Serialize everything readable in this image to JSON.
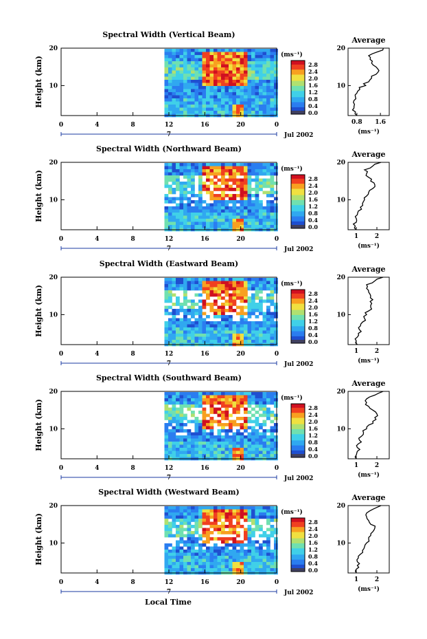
{
  "figure": {
    "x_axis_label": "Local Time",
    "date_label": "Jul 2002",
    "day_label": "7",
    "y_axis_label": "Height (km)",
    "colorbar_unit": "(ms⁻¹)",
    "colorbar_ticks": [
      "2.8",
      "2.4",
      "2.0",
      "1.6",
      "1.2",
      "0.8",
      "0.4",
      "0.0"
    ],
    "avg_title": "Average",
    "avg_unit": "(ms⁻¹)",
    "colors": {
      "palette": [
        "#2a3a8c",
        "#1f4fd0",
        "#2a7df0",
        "#30a8f0",
        "#40d0e8",
        "#70e0b0",
        "#b0e070",
        "#f0e040",
        "#f8a020",
        "#f04020",
        "#d01020"
      ],
      "axis": "#000000",
      "date_bar": "#1a3aa0",
      "bottom_swatch": "#404060"
    }
  },
  "chart_data": [
    {
      "type": "heatmap",
      "title": "Spectral Width (Vertical Beam)",
      "xlabel": "",
      "ylabel": "Height (km)",
      "x_ticks": [
        "0",
        "4",
        "8",
        "12",
        "16",
        "20",
        "0"
      ],
      "y_ticks": [
        "20",
        "10"
      ],
      "xlim": [
        0,
        24
      ],
      "ylim": [
        2,
        20
      ],
      "data_start_hour": 11.5,
      "value_range": [
        0.0,
        3.0
      ],
      "average_profile": {
        "x_ticks": [
          "0.8",
          "1.6"
        ],
        "xlim": [
          0.5,
          1.9
        ],
        "y_ticks": [
          "20",
          "10"
        ],
        "heights_km": [
          2,
          3,
          4,
          5,
          6,
          7,
          8,
          9,
          10,
          11,
          12,
          13,
          14,
          15,
          16,
          17,
          18,
          19,
          20
        ],
        "values": [
          0.8,
          0.75,
          0.7,
          0.72,
          0.7,
          0.75,
          0.8,
          0.9,
          1.1,
          1.2,
          1.3,
          1.45,
          1.55,
          1.45,
          1.3,
          1.25,
          1.2,
          1.5,
          1.7
        ]
      }
    },
    {
      "type": "heatmap",
      "title": "Spectral Width (Northward Beam)",
      "xlabel": "",
      "ylabel": "Height (km)",
      "x_ticks": [
        "0",
        "4",
        "8",
        "12",
        "16",
        "20",
        "0"
      ],
      "y_ticks": [
        "20",
        "10"
      ],
      "xlim": [
        0,
        24
      ],
      "ylim": [
        2,
        20
      ],
      "data_start_hour": 11.5,
      "value_range": [
        0.0,
        3.0
      ],
      "average_profile": {
        "x_ticks": [
          "1",
          "2"
        ],
        "xlim": [
          0.6,
          2.6
        ],
        "y_ticks": [
          "20",
          "10"
        ],
        "heights_km": [
          2,
          3,
          4,
          5,
          6,
          7,
          8,
          9,
          10,
          11,
          12,
          13,
          14,
          15,
          16,
          17,
          18,
          19,
          20
        ],
        "values": [
          1.0,
          0.95,
          1.0,
          1.0,
          1.05,
          1.1,
          1.2,
          1.3,
          1.4,
          1.5,
          1.6,
          1.8,
          1.9,
          1.7,
          1.6,
          1.5,
          1.4,
          1.8,
          2.2
        ]
      }
    },
    {
      "type": "heatmap",
      "title": "Spectral Width (Eastward Beam)",
      "xlabel": "",
      "ylabel": "Height (km)",
      "x_ticks": [
        "0",
        "4",
        "8",
        "12",
        "16",
        "20",
        "0"
      ],
      "y_ticks": [
        "20",
        "10"
      ],
      "xlim": [
        0,
        24
      ],
      "ylim": [
        2,
        20
      ],
      "data_start_hour": 11.5,
      "value_range": [
        0.0,
        3.0
      ],
      "average_profile": {
        "x_ticks": [
          "1",
          "2"
        ],
        "xlim": [
          0.6,
          2.6
        ],
        "y_ticks": [
          "20",
          "10"
        ],
        "heights_km": [
          2,
          3,
          4,
          5,
          6,
          7,
          8,
          9,
          10,
          11,
          12,
          13,
          14,
          15,
          16,
          17,
          18,
          19,
          20
        ],
        "values": [
          1.05,
          1.0,
          1.05,
          1.1,
          1.15,
          1.2,
          1.3,
          1.4,
          1.5,
          1.6,
          1.7,
          1.75,
          1.8,
          1.7,
          1.6,
          1.5,
          1.5,
          1.9,
          2.3
        ]
      }
    },
    {
      "type": "heatmap",
      "title": "Spectral Width (Southward Beam)",
      "xlabel": "",
      "ylabel": "Height (km)",
      "x_ticks": [
        "0",
        "4",
        "8",
        "12",
        "16",
        "20",
        "0"
      ],
      "y_ticks": [
        "20",
        "10"
      ],
      "xlim": [
        0,
        24
      ],
      "ylim": [
        2,
        20
      ],
      "data_start_hour": 11.5,
      "value_range": [
        0.0,
        3.0
      ],
      "average_profile": {
        "x_ticks": [
          "1",
          "2"
        ],
        "xlim": [
          0.6,
          2.6
        ],
        "y_ticks": [
          "20",
          "10"
        ],
        "heights_km": [
          2,
          3,
          4,
          5,
          6,
          7,
          8,
          9,
          10,
          11,
          12,
          13,
          14,
          15,
          16,
          17,
          18,
          19,
          20
        ],
        "values": [
          1.0,
          1.0,
          1.05,
          1.05,
          1.1,
          1.15,
          1.25,
          1.35,
          1.5,
          1.6,
          1.8,
          1.9,
          2.0,
          1.8,
          1.6,
          1.5,
          1.5,
          1.9,
          2.3
        ]
      }
    },
    {
      "type": "heatmap",
      "title": "Spectral Width (Westward Beam)",
      "xlabel": "Local Time",
      "ylabel": "Height (km)",
      "x_ticks": [
        "0",
        "4",
        "8",
        "12",
        "16",
        "20",
        "0"
      ],
      "y_ticks": [
        "20",
        "10"
      ],
      "xlim": [
        0,
        24
      ],
      "ylim": [
        2,
        20
      ],
      "data_start_hour": 11.5,
      "value_range": [
        0.0,
        3.0
      ],
      "average_profile": {
        "x_ticks": [
          "1",
          "2"
        ],
        "xlim": [
          0.6,
          2.6
        ],
        "y_ticks": [
          "20",
          "10"
        ],
        "heights_km": [
          2,
          3,
          4,
          5,
          6,
          7,
          8,
          9,
          10,
          11,
          12,
          13,
          14,
          15,
          16,
          17,
          18,
          19,
          20
        ],
        "values": [
          1.0,
          1.0,
          1.05,
          1.05,
          1.1,
          1.2,
          1.3,
          1.4,
          1.5,
          1.6,
          1.7,
          1.8,
          1.9,
          1.7,
          1.6,
          1.5,
          1.5,
          1.8,
          2.2
        ]
      }
    }
  ]
}
